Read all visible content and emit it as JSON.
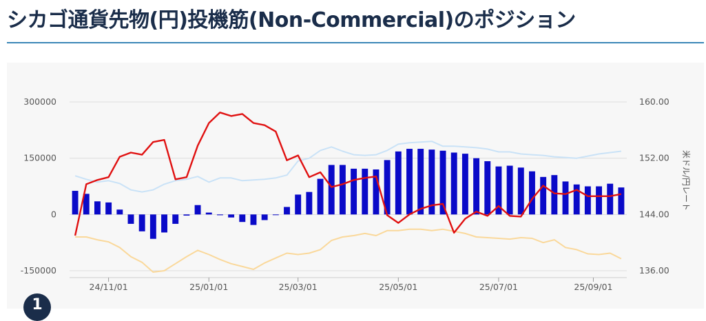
{
  "page": {
    "title": "シカゴ通貨先物(円)投機筋(Non-Commercial)のポジション",
    "badge_text": "1"
  },
  "colors": {
    "bars": "#0a0ac8",
    "rate_line": "#e01010",
    "upper_band": "#c9e2f7",
    "lower_band": "#fad89a"
  },
  "chart_data": {
    "type": "bar+line",
    "left_axis": {
      "ylim": [
        -150000,
        300000
      ],
      "ticks": [
        "300000",
        "150000",
        "0",
        "-150000"
      ]
    },
    "right_axis": {
      "label": "米ドル/円レート",
      "ylim": [
        136,
        160
      ],
      "ticks": [
        "160.00",
        "152.00",
        "144.00",
        "136.00"
      ]
    },
    "x_ticks": [
      "24/11/01",
      "25/01/01",
      "25/03/01",
      "25/05/01",
      "25/07/01",
      "25/09/01"
    ],
    "grid": true,
    "series": [
      {
        "type": "bar",
        "axis": "left",
        "values": [
          63000,
          55000,
          35000,
          32000,
          13000,
          -25000,
          -45000,
          -65000,
          -48000,
          -25000,
          -3000,
          25000,
          5000,
          -2000,
          -8000,
          -20000,
          -28000,
          -15000,
          0,
          20000,
          53000,
          60000,
          95000,
          132000,
          132000,
          122000,
          122000,
          120000,
          145000,
          168000,
          175000,
          175000,
          173000,
          170000,
          165000,
          162000,
          150000,
          142000,
          128000,
          130000,
          125000,
          115000,
          100000,
          105000,
          88000,
          80000,
          75000,
          75000,
          82000,
          72000
        ]
      },
      {
        "type": "line",
        "axis": "right",
        "values": [
          141.0,
          148.3,
          148.9,
          149.3,
          152.2,
          152.8,
          152.5,
          154.3,
          154.6,
          149.0,
          149.3,
          153.8,
          157.0,
          158.5,
          158.0,
          158.3,
          157.0,
          156.7,
          155.8,
          151.7,
          152.4,
          149.3,
          150.0,
          147.9,
          148.3,
          148.9,
          149.2,
          149.4,
          143.9,
          142.8,
          144.0,
          144.8,
          145.3,
          145.5,
          141.4,
          143.4,
          144.4,
          143.8,
          145.2,
          143.8,
          143.7,
          146.2,
          148.1,
          147.0,
          146.9,
          147.5,
          146.6,
          146.6,
          146.6,
          146.9
        ]
      },
      {
        "type": "line",
        "axis": "right",
        "role": "upper-band",
        "values": [
          149.5,
          149.0,
          148.6,
          148.8,
          148.4,
          147.5,
          147.2,
          147.5,
          148.3,
          148.8,
          149.0,
          149.4,
          148.6,
          149.2,
          149.2,
          148.8,
          148.9,
          149.0,
          149.2,
          149.6,
          151.6,
          152.0,
          153.1,
          153.6,
          153.0,
          152.5,
          152.4,
          152.5,
          153.1,
          154.0,
          154.2,
          154.3,
          154.4,
          153.7,
          153.7,
          153.6,
          153.5,
          153.3,
          152.9,
          152.9,
          152.6,
          152.5,
          152.4,
          152.2,
          152.1,
          152.0,
          152.3,
          152.6,
          152.8,
          153.0
        ]
      },
      {
        "type": "line",
        "axis": "right",
        "role": "lower-band",
        "values": [
          140.8,
          140.8,
          140.4,
          140.1,
          139.3,
          138.0,
          137.2,
          135.8,
          136.0,
          137.0,
          138.0,
          138.9,
          138.3,
          137.6,
          137.0,
          136.6,
          136.2,
          137.1,
          137.8,
          138.5,
          138.3,
          138.5,
          139.0,
          140.3,
          140.8,
          141.0,
          141.3,
          141.0,
          141.7,
          141.7,
          141.9,
          141.9,
          141.7,
          141.9,
          141.6,
          141.3,
          140.8,
          140.7,
          140.6,
          140.5,
          140.7,
          140.6,
          140.0,
          140.4,
          139.3,
          139.0,
          138.4,
          138.3,
          138.5,
          137.7
        ]
      }
    ]
  }
}
